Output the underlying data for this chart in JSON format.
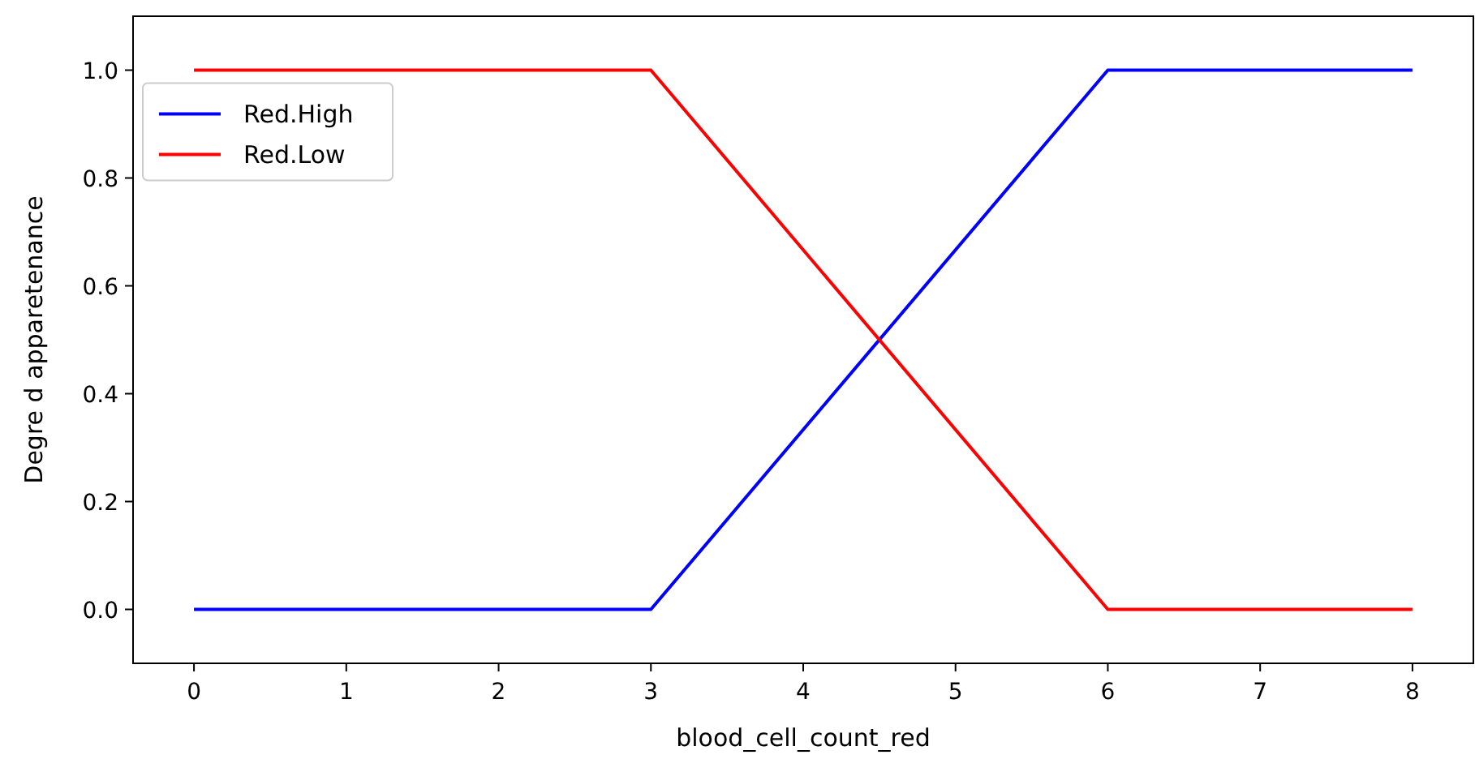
{
  "chart_data": {
    "type": "line",
    "xlabel": "blood_cell_count_red",
    "ylabel": "Degre d apparetenance",
    "xlim": [
      -0.4,
      8.4
    ],
    "ylim": [
      -0.1,
      1.1
    ],
    "xticks": [
      0,
      1,
      2,
      3,
      4,
      5,
      6,
      7,
      8
    ],
    "yticks": [
      {
        "value": 0,
        "label": "0.0"
      },
      {
        "value": 0.2,
        "label": "0.2"
      },
      {
        "value": 0.4,
        "label": "0.4"
      },
      {
        "value": 0.6,
        "label": "0.6"
      },
      {
        "value": 0.8,
        "label": "0.8"
      },
      {
        "value": 1,
        "label": "1.0"
      }
    ],
    "x": [
      0,
      3,
      6,
      8
    ],
    "series": [
      {
        "name": "Red.High",
        "color": "#0000ff",
        "values": [
          0,
          0,
          1,
          1
        ]
      },
      {
        "name": "Red.Low",
        "color": "#ff0000",
        "values": [
          1,
          1,
          0,
          0
        ]
      }
    ],
    "legend": "top left",
    "grid": false,
    "marker": "none",
    "line_style": "solid"
  }
}
